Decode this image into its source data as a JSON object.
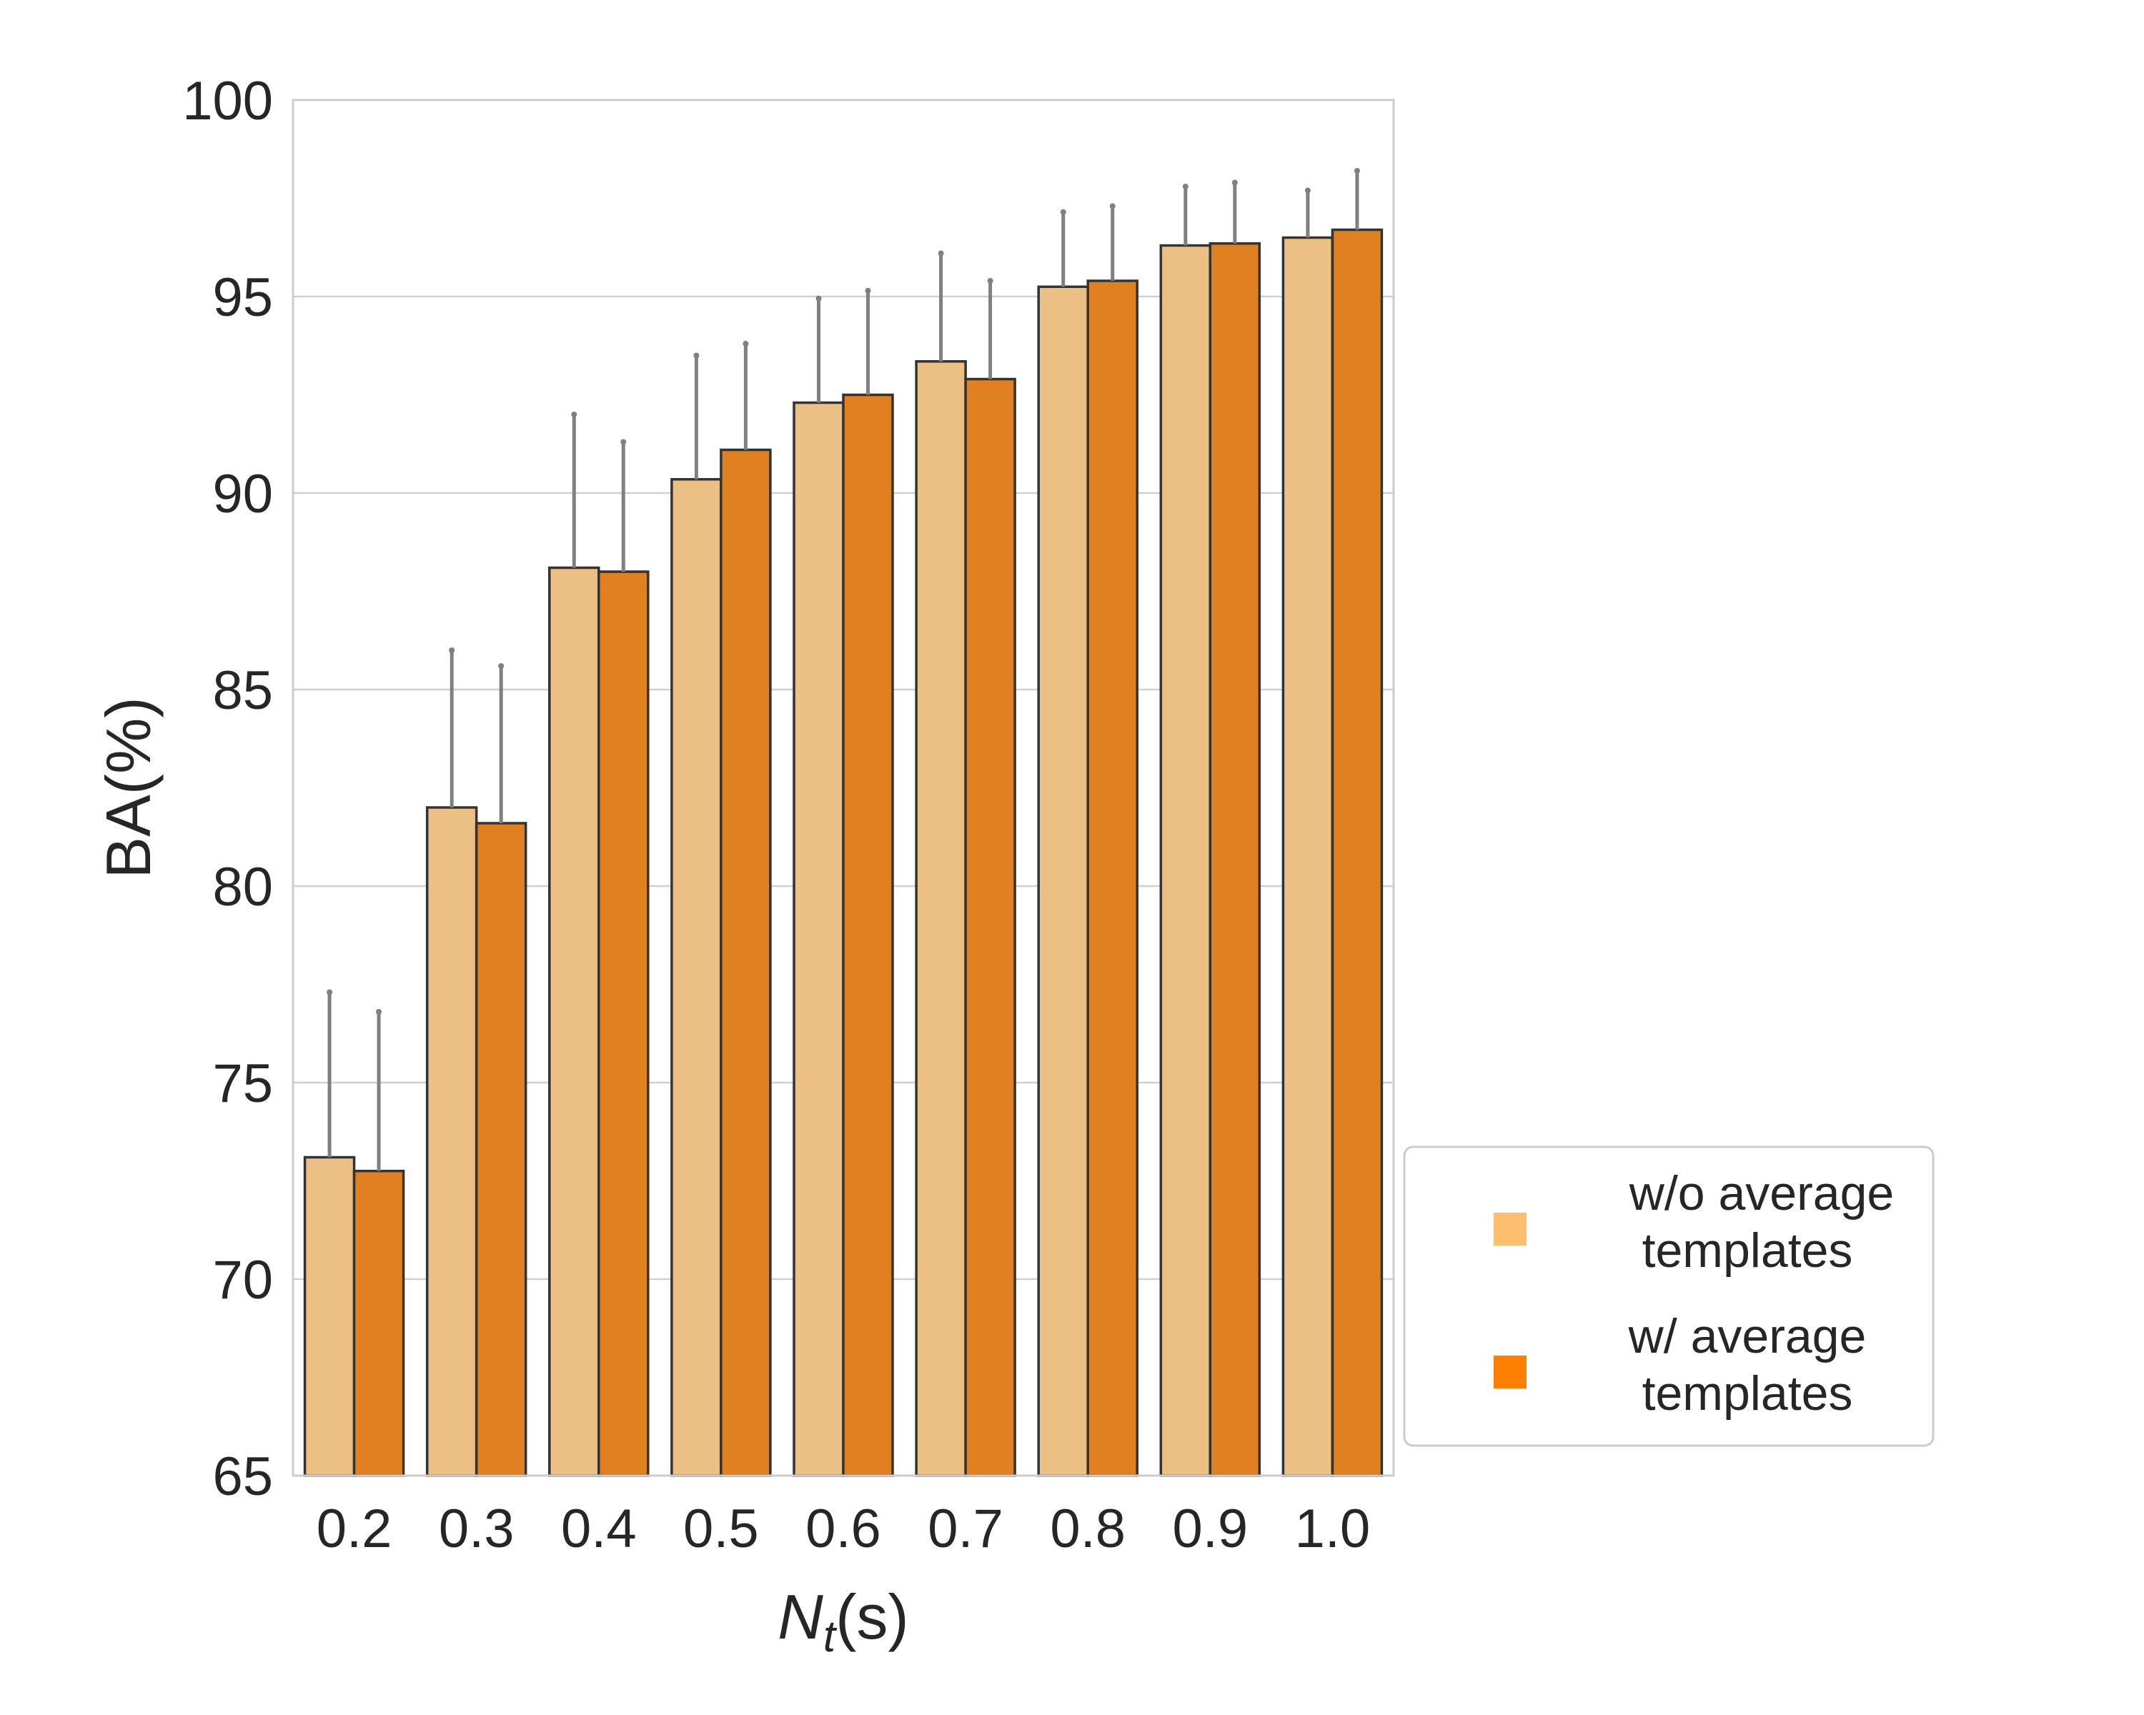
{
  "chart_data": {
    "type": "bar",
    "title": "",
    "xlabel": {
      "main": "N",
      "subscript": "t",
      "suffix": "(s)"
    },
    "ylabel": "BA(%)",
    "ylim": [
      65,
      100
    ],
    "yticks": [
      65,
      70,
      75,
      80,
      85,
      90,
      95,
      100
    ],
    "grid": "y",
    "categories": [
      "0.2",
      "0.3",
      "0.4",
      "0.5",
      "0.6",
      "0.7",
      "0.8",
      "0.9",
      "1.0"
    ],
    "series": [
      {
        "name": "w/o average templates",
        "color": "#ecbf84",
        "legend_color": "#fdbf6f",
        "values": [
          73.1,
          82.0,
          88.1,
          90.35,
          92.3,
          93.35,
          95.25,
          96.3,
          96.5
        ],
        "error_upper": [
          77.3,
          86.0,
          92.0,
          93.5,
          94.95,
          96.1,
          97.15,
          97.8,
          97.7
        ]
      },
      {
        "name": "w/ average templates",
        "color": "#e08020",
        "legend_color": "#ff7f00",
        "values": [
          72.75,
          81.6,
          88.0,
          91.1,
          92.5,
          92.9,
          95.4,
          96.35,
          96.7
        ],
        "error_upper": [
          76.8,
          85.6,
          91.3,
          93.8,
          95.15,
          95.4,
          97.3,
          97.9,
          98.2
        ]
      }
    ],
    "legend": {
      "position": "right-bottom",
      "entries": [
        {
          "line1": "w/o average",
          "line2": "templates"
        },
        {
          "line1": "w/ average",
          "line2": "templates"
        }
      ]
    },
    "colors": {
      "grid": "#d0d0d0",
      "frame": "#cccccc",
      "errorbar": "#808080",
      "bar_edge": "#333333"
    }
  }
}
